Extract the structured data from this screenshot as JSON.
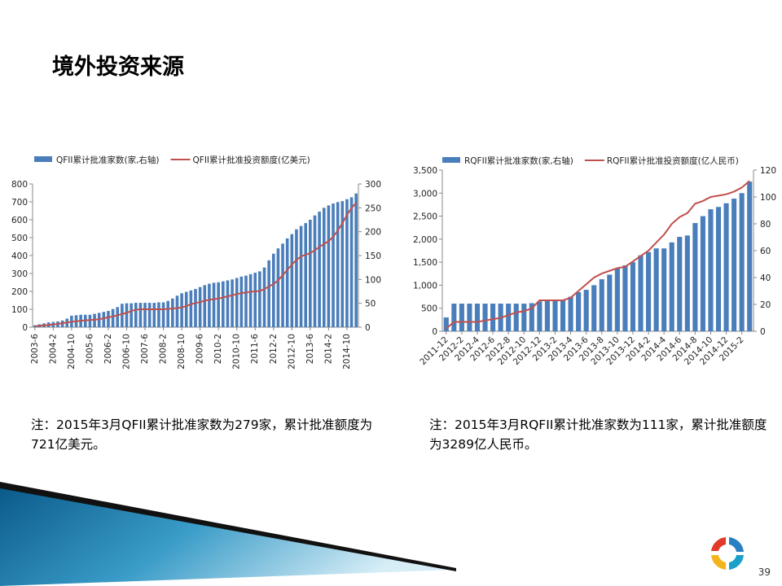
{
  "title": "境外投资来源",
  "notes": [
    "注：2015年3月QFII累计批准家数为279家，累计批准额度为721亿美元。",
    "注：2015年3月RQFII累计批准家数为111家，累计批准额度为3289亿人民币。"
  ],
  "page_number": "39",
  "chart_data": [
    {
      "type": "bar",
      "categories": [
        "2003-6",
        null,
        null,
        null,
        "2004-2",
        null,
        null,
        null,
        "2004-10",
        null,
        null,
        null,
        "2005-6",
        null,
        null,
        null,
        "2006-2",
        null,
        null,
        null,
        "2006-10",
        null,
        null,
        null,
        "2007-6",
        null,
        null,
        null,
        "2008-2",
        null,
        null,
        null,
        "2008-10",
        null,
        null,
        null,
        "2009-6",
        null,
        null,
        null,
        "2010-2",
        null,
        null,
        null,
        "2010-10",
        null,
        null,
        null,
        "2011-6",
        null,
        null,
        null,
        "2012-2",
        null,
        null,
        null,
        "2012-10",
        null,
        null,
        null,
        "2013-6",
        null,
        null,
        null,
        "2014-2",
        null,
        null,
        null,
        "2014-10",
        null,
        null
      ],
      "series": [
        {
          "name": "QFII累计批准家数(家,右轴)",
          "type": "bar",
          "axis": "y2",
          "color": "#4a7ebb",
          "values": [
            4,
            6,
            8,
            10,
            11,
            12,
            14,
            18,
            24,
            25,
            26,
            26,
            26,
            28,
            30,
            32,
            34,
            38,
            42,
            49,
            50,
            50,
            51,
            51,
            51,
            51,
            51,
            52,
            52,
            55,
            60,
            66,
            71,
            74,
            77,
            80,
            84,
            88,
            91,
            93,
            94,
            96,
            98,
            100,
            103,
            106,
            108,
            111,
            114,
            117,
            125,
            140,
            154,
            165,
            175,
            186,
            195,
            205,
            212,
            218,
            225,
            234,
            242,
            250,
            255,
            259,
            262,
            264,
            268,
            272,
            280
          ]
        },
        {
          "name": "QFII累计批准投资额度(亿美元)",
          "type": "line",
          "color": "#c0504d",
          "values": [
            5,
            8,
            10,
            12,
            15,
            18,
            22,
            26,
            30,
            33,
            36,
            38,
            40,
            42,
            44,
            50,
            55,
            60,
            66,
            74,
            80,
            90,
            98,
            100,
            100,
            100,
            100,
            100,
            100,
            102,
            104,
            107,
            110,
            118,
            128,
            135,
            140,
            148,
            153,
            157,
            160,
            166,
            172,
            178,
            185,
            190,
            194,
            198,
            200,
            202,
            212,
            228,
            240,
            262,
            290,
            320,
            350,
            375,
            395,
            405,
            413,
            430,
            448,
            465,
            480,
            505,
            540,
            580,
            627,
            665,
            695
          ]
        }
      ],
      "ylim": [
        0,
        800
      ],
      "yticks": [
        0,
        100,
        200,
        300,
        400,
        500,
        600,
        700,
        800
      ],
      "y2lim": [
        0,
        300
      ],
      "y2ticks": [
        0,
        50,
        100,
        150,
        200,
        250,
        300
      ],
      "grid": false,
      "legend": "top"
    },
    {
      "type": "bar",
      "categories": [
        "2011-12",
        null,
        "2012-2",
        null,
        "2012-4",
        null,
        "2012-6",
        null,
        "2012-8",
        null,
        "2012-10",
        null,
        "2012-12",
        null,
        "2013-2",
        null,
        "2013-4",
        null,
        "2013-6",
        null,
        "2013-8",
        null,
        "2013-10",
        null,
        "2013-12",
        null,
        "2014-2",
        null,
        "2014-4",
        null,
        "2014-6",
        null,
        "2014-8",
        null,
        "2014-10",
        null,
        "2014-12",
        null,
        "2015-2",
        null
      ],
      "series": [
        {
          "name": "RQFII累计批准家数(家,右轴)",
          "type": "bar",
          "color": "#4a7ebb",
          "values": [
            300,
            600,
            600,
            600,
            600,
            600,
            600,
            600,
            600,
            600,
            600,
            610,
            650,
            670,
            670,
            680,
            750,
            850,
            900,
            1000,
            1130,
            1230,
            1370,
            1430,
            1500,
            1650,
            1720,
            1800,
            1800,
            1930,
            2050,
            2080,
            2350,
            2500,
            2650,
            2700,
            2780,
            2880,
            3000,
            3250
          ]
        },
        {
          "name": "RQFII累计批准投资额度(亿人民币)",
          "type": "line",
          "axis": "y2",
          "color": "#c0504d",
          "values": [
            2,
            7,
            7,
            7,
            7,
            8,
            9,
            10,
            12,
            14,
            15,
            17,
            23,
            23,
            23,
            23,
            25,
            30,
            35,
            40,
            43,
            45,
            47,
            48,
            52,
            56,
            60,
            66,
            72,
            80,
            85,
            88,
            95,
            97,
            100,
            101,
            102,
            104,
            107,
            112
          ]
        }
      ],
      "ylim": [
        0,
        3500
      ],
      "yticks": [
        0,
        500,
        {
          "value": 1000,
          "label": "1,000"
        },
        {
          "value": 1500,
          "label": "1,500"
        },
        {
          "value": 2000,
          "label": "2,000"
        },
        {
          "value": 2500,
          "label": "2,500"
        },
        {
          "value": 3000,
          "label": "3,000"
        },
        {
          "value": 3500,
          "label": "3,500"
        }
      ],
      "y2lim": [
        0,
        120
      ],
      "y2ticks": [
        0,
        20,
        40,
        60,
        80,
        100,
        120
      ],
      "grid": false,
      "legend": "top"
    }
  ]
}
